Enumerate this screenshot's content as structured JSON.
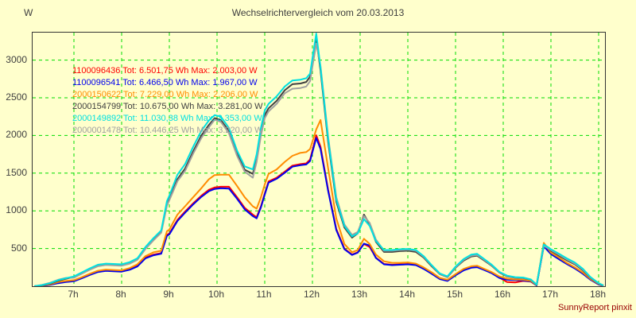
{
  "title": "Wechselrichtervergleich vom 20.03.2013",
  "credit": "SunnyReport pinxit",
  "colors": {
    "background": "#ffffcc",
    "grid": "#00dd00",
    "axis_border": "#333333",
    "text": "#404040",
    "credit": "#990000"
  },
  "chart_data": {
    "type": "line",
    "title": "Wechselrichtervergleich vom 20.03.2013",
    "xlabel": "",
    "ylabel": "W",
    "x_unit": "h",
    "xlim": [
      6.1333,
      18.1333
    ],
    "ylim": [
      0,
      3365
    ],
    "yticks": [
      500,
      1000,
      1500,
      2000,
      2500,
      3000
    ],
    "xticks": [
      7,
      8,
      9,
      10,
      11,
      12,
      13,
      14,
      15,
      16,
      17,
      18
    ],
    "xtick_labels": [
      "7h",
      "8h",
      "9h",
      "10h",
      "11h",
      "12h",
      "13h",
      "14h",
      "15h",
      "16h",
      "17h",
      "18h"
    ],
    "grid": "dashed",
    "legend_position": "top-left",
    "x": [
      6.17,
      6.33,
      6.5,
      6.67,
      6.83,
      7.0,
      7.17,
      7.33,
      7.5,
      7.67,
      7.83,
      8.0,
      8.17,
      8.33,
      8.5,
      8.67,
      8.83,
      8.95,
      9.0,
      9.17,
      9.33,
      9.5,
      9.67,
      9.83,
      9.95,
      10.08,
      10.25,
      10.42,
      10.58,
      10.75,
      10.83,
      10.92,
      11.0,
      11.08,
      11.25,
      11.42,
      11.58,
      11.75,
      11.87,
      11.95,
      12.08,
      12.17,
      12.33,
      12.5,
      12.67,
      12.83,
      12.95,
      13.08,
      13.2,
      13.33,
      13.5,
      13.67,
      13.83,
      14.0,
      14.17,
      14.33,
      14.5,
      14.67,
      14.83,
      15.0,
      15.17,
      15.33,
      15.45,
      15.58,
      15.75,
      15.92,
      16.08,
      16.25,
      16.42,
      16.58,
      16.7,
      16.85,
      17.0,
      17.17,
      17.33,
      17.5,
      17.67,
      17.83,
      18.0,
      18.1
    ],
    "series": [
      {
        "id": "1100096436",
        "total_wh": "6.501,75",
        "max_w": "2.003,00",
        "label": "1100096436 Tot: 6.501,75 Wh Max: 2.003,00 W",
        "color": "#ff0000",
        "values": [
          0,
          8,
          20,
          45,
          60,
          70,
          110,
          155,
          195,
          210,
          205,
          200,
          225,
          270,
          380,
          420,
          440,
          680,
          700,
          880,
          990,
          1100,
          1200,
          1280,
          1310,
          1320,
          1320,
          1180,
          1040,
          950,
          915,
          1060,
          1230,
          1390,
          1440,
          1520,
          1600,
          1620,
          1630,
          1680,
          2003,
          1850,
          1280,
          760,
          500,
          420,
          450,
          560,
          520,
          380,
          295,
          285,
          290,
          295,
          285,
          235,
          170,
          100,
          75,
          150,
          215,
          250,
          258,
          225,
          180,
          115,
          55,
          50,
          70,
          60,
          12,
          540,
          430,
          365,
          300,
          240,
          170,
          90,
          25,
          5
        ]
      },
      {
        "id": "1100096541",
        "total_wh": "6.466,50",
        "max_w": "1.967,00",
        "label": "1100096541 Tot: 6.466,50 Wh Max: 1.967,00 W",
        "color": "#0000ee",
        "values": [
          0,
          6,
          17,
          40,
          55,
          65,
          105,
          148,
          188,
          203,
          198,
          193,
          218,
          262,
          370,
          410,
          430,
          668,
          688,
          865,
          975,
          1085,
          1185,
          1262,
          1290,
          1300,
          1295,
          1160,
          1020,
          930,
          900,
          1045,
          1215,
          1375,
          1425,
          1505,
          1585,
          1605,
          1615,
          1660,
          1967,
          1820,
          1260,
          745,
          490,
          415,
          445,
          565,
          540,
          375,
          290,
          280,
          285,
          290,
          280,
          230,
          165,
          95,
          70,
          145,
          210,
          245,
          252,
          220,
          175,
          110,
          85,
          80,
          75,
          62,
          10,
          530,
          425,
          358,
          295,
          235,
          165,
          85,
          22,
          4
        ]
      },
      {
        "id": "2000150622",
        "total_wh": "7.229,00",
        "max_w": "2.206,00",
        "label": "2000150622 Tot: 7.229,00 Wh Max: 2.206,00 W",
        "color": "#ff8c00",
        "values": [
          0,
          10,
          25,
          55,
          70,
          80,
          120,
          165,
          205,
          220,
          215,
          210,
          240,
          290,
          400,
          450,
          470,
          730,
          750,
          950,
          1060,
          1180,
          1300,
          1420,
          1475,
          1480,
          1480,
          1330,
          1180,
          1060,
          1030,
          1180,
          1350,
          1490,
          1550,
          1650,
          1730,
          1770,
          1780,
          1820,
          2080,
          2206,
          1560,
          900,
          560,
          450,
          480,
          630,
          560,
          420,
          330,
          310,
          310,
          315,
          300,
          250,
          185,
          110,
          85,
          160,
          230,
          265,
          272,
          235,
          190,
          130,
          100,
          90,
          85,
          70,
          15,
          575,
          445,
          380,
          310,
          250,
          180,
          95,
          30,
          5
        ]
      },
      {
        "id": "2000154799",
        "total_wh": "10.675,00",
        "max_w": "3.281,00",
        "label": "2000154799 Tot: 10.675,00 Wh Max: 3.281,00 W",
        "color": "#404040",
        "values": [
          0,
          12,
          35,
          72,
          98,
          120,
          175,
          225,
          272,
          288,
          283,
          278,
          308,
          358,
          505,
          620,
          720,
          1090,
          1160,
          1420,
          1560,
          1790,
          2000,
          2140,
          2230,
          2205,
          2060,
          1760,
          1545,
          1490,
          1690,
          2040,
          2270,
          2360,
          2460,
          2600,
          2680,
          2690,
          2710,
          2780,
          3281,
          2860,
          1910,
          1120,
          780,
          645,
          700,
          950,
          820,
          590,
          455,
          455,
          465,
          470,
          455,
          380,
          265,
          160,
          120,
          245,
          340,
          395,
          405,
          350,
          275,
          180,
          130,
          112,
          108,
          85,
          18,
          545,
          470,
          405,
          345,
          290,
          210,
          110,
          35,
          8
        ]
      },
      {
        "id": "2000149892",
        "total_wh": "11.030,38",
        "max_w": "3.353,00",
        "label": "2000149892 Tot: 11.030,38 Wh Max: 3.353,00 W",
        "color": "#00e0e0",
        "values": [
          0,
          15,
          40,
          80,
          105,
          130,
          185,
          235,
          285,
          300,
          295,
          290,
          320,
          370,
          520,
          640,
          740,
          1130,
          1200,
          1480,
          1620,
          1850,
          2060,
          2200,
          2270,
          2250,
          2100,
          1800,
          1590,
          1550,
          1750,
          2100,
          2330,
          2420,
          2520,
          2650,
          2730,
          2740,
          2760,
          2820,
          3353,
          2900,
          1950,
          1150,
          800,
          660,
          700,
          890,
          800,
          600,
          480,
          480,
          490,
          495,
          480,
          400,
          280,
          170,
          130,
          260,
          360,
          420,
          430,
          370,
          290,
          190,
          140,
          120,
          115,
          90,
          20,
          555,
          490,
          430,
          370,
          315,
          230,
          120,
          40,
          10
        ]
      },
      {
        "id": "2000001478",
        "total_wh": "10.446,25",
        "max_w": "3.220,00",
        "label": "2000001478 Tot: 10.446,25 Wh Max: 3.220,00 W",
        "color": "#a0a0a0",
        "values": [
          0,
          18,
          45,
          85,
          110,
          112,
          168,
          218,
          265,
          282,
          277,
          272,
          300,
          350,
          495,
          610,
          710,
          1070,
          1140,
          1395,
          1530,
          1760,
          1965,
          2110,
          2210,
          2180,
          2030,
          1730,
          1520,
          1440,
          1650,
          2000,
          2230,
          2320,
          2420,
          2560,
          2620,
          2630,
          2650,
          2720,
          3220,
          2920,
          1980,
          1180,
          820,
          680,
          720,
          930,
          840,
          620,
          470,
          470,
          480,
          485,
          470,
          390,
          275,
          165,
          125,
          250,
          350,
          405,
          415,
          360,
          282,
          185,
          135,
          116,
          112,
          88,
          22,
          535,
          480,
          418,
          358,
          300,
          220,
          115,
          38,
          12
        ]
      }
    ],
    "draw_order": [
      0,
      1,
      2,
      3,
      5,
      4
    ]
  }
}
